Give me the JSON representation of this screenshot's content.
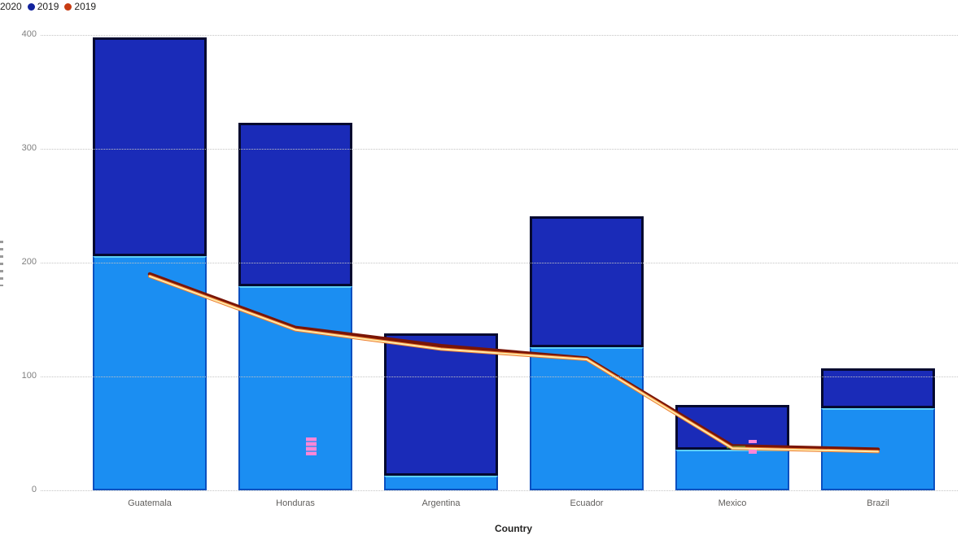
{
  "legend": {
    "items": [
      {
        "label": "2020",
        "dot_visible": false,
        "color": "#1b8ef2"
      },
      {
        "label": "2019",
        "dot_visible": true,
        "color": "#12239e"
      },
      {
        "label": "2019",
        "dot_visible": true,
        "color": "#c73b12"
      }
    ]
  },
  "chart_data": {
    "type": "combo: stacked bar + line",
    "title": "",
    "xlabel": "Country",
    "ylabel": "",
    "categories": [
      "Guatemala",
      "Honduras",
      "Argentina",
      "Ecuador",
      "Mexico",
      "Brazil"
    ],
    "series": [
      {
        "name": "2020",
        "type": "bar",
        "stack": "bottom",
        "color": "#1b8ef2",
        "values": [
          206,
          179,
          13,
          126,
          36,
          72
        ]
      },
      {
        "name": "2019",
        "type": "bar",
        "stack": "top",
        "color": "#1a2bb8",
        "values": [
          192,
          144,
          125,
          115,
          39,
          35
        ]
      },
      {
        "name": "2019",
        "type": "line",
        "color": "#7a1505",
        "values": [
          190,
          143,
          127,
          116,
          39,
          36
        ]
      },
      {
        "name": "2019 overlay highlight",
        "type": "line",
        "color": "#ffe9a8",
        "values": [
          188,
          141,
          124,
          115,
          37,
          34
        ]
      }
    ],
    "bar_totals": [
      398,
      323,
      138,
      241,
      75,
      107
    ],
    "y_ticks": [
      0,
      100,
      200,
      300,
      400
    ],
    "ylim": [
      0,
      400
    ],
    "grid": "horizontal dotted",
    "legend_position": "top-left"
  },
  "colors": {
    "bar_2020_fill": "#1b8ef2",
    "bar_2020_top_border": "#5ed0f8",
    "bar_2019_fill": "#1a2bb8",
    "bar_2019_border": "#04092f",
    "line_dark_red": "#7a1505",
    "line_orange": "#ed7d31",
    "line_cream": "#ffe9a8",
    "green_dash": "#3c9e3c",
    "pink_artifact": "#ff86d8",
    "gridline": "#c4c4c4",
    "axis_text": "#808080"
  }
}
